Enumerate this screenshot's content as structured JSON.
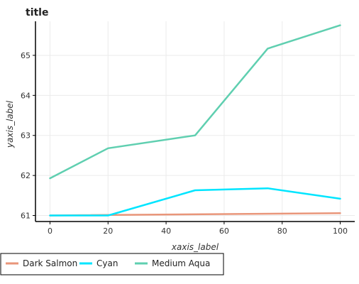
{
  "chart_data": {
    "type": "line",
    "title": "title",
    "xlabel": "xaxis_label",
    "ylabel": "yaxis_label",
    "xlim": [
      -5,
      105
    ],
    "ylim": [
      60.85,
      65.85
    ],
    "x_ticks": [
      0,
      20,
      40,
      60,
      80,
      100
    ],
    "y_ticks": [
      61,
      62,
      63,
      64,
      65
    ],
    "grid": true,
    "legend_position": "bottom",
    "series": [
      {
        "name": "Dark Salmon",
        "color": "#e9967a",
        "x": [
          0,
          100
        ],
        "y": [
          61.0,
          61.06
        ]
      },
      {
        "name": "Cyan",
        "color": "#00e5ff",
        "x": [
          0,
          20,
          50,
          75,
          100
        ],
        "y": [
          61.0,
          61.0,
          61.63,
          61.68,
          61.42
        ]
      },
      {
        "name": "Medium Aqua",
        "color": "#5fcfb0",
        "x": [
          0,
          20,
          50,
          75,
          100
        ],
        "y": [
          61.93,
          62.68,
          63.0,
          65.17,
          65.75
        ]
      }
    ]
  }
}
